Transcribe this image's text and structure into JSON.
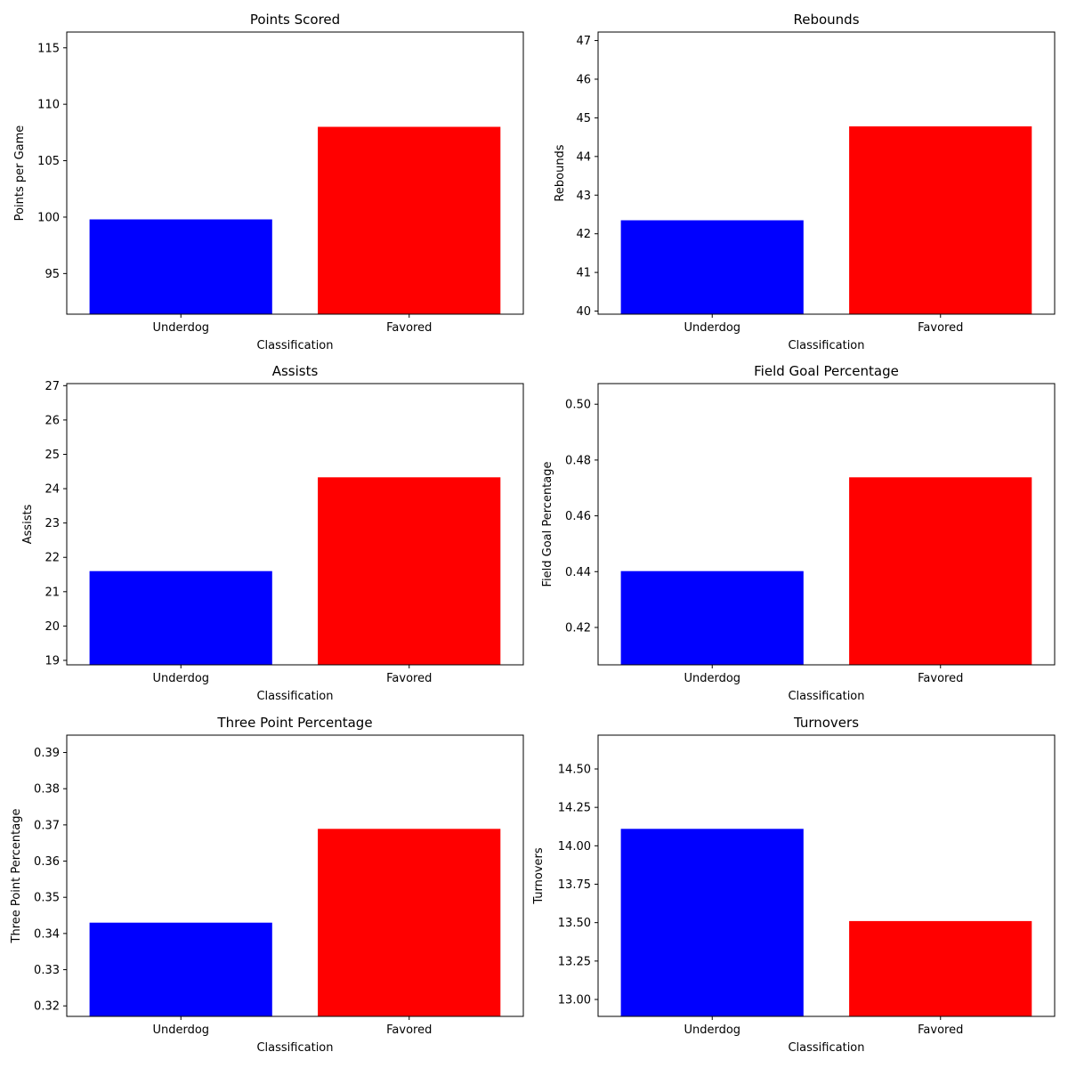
{
  "chart_data": [
    {
      "type": "bar",
      "title": "Points Scored",
      "xlabel": "Classification",
      "ylabel": "Points per Game",
      "categories": [
        "Underdog",
        "Favored"
      ],
      "values": [
        99.8,
        108.0
      ],
      "colors": [
        "#0000ff",
        "#ff0000"
      ],
      "ylim": [
        91.4,
        116.4
      ],
      "yticks": [
        95,
        100,
        105,
        110,
        115
      ],
      "ytick_labels": [
        "95",
        "100",
        "105",
        "110",
        "115"
      ],
      "grid": false,
      "legend": "none"
    },
    {
      "type": "bar",
      "title": "Rebounds",
      "xlabel": "Classification",
      "ylabel": "Rebounds",
      "categories": [
        "Underdog",
        "Favored"
      ],
      "values": [
        42.35,
        44.78
      ],
      "colors": [
        "#0000ff",
        "#ff0000"
      ],
      "ylim": [
        39.92,
        47.22
      ],
      "yticks": [
        40,
        41,
        42,
        43,
        44,
        45,
        46,
        47
      ],
      "ytick_labels": [
        "40",
        "41",
        "42",
        "43",
        "44",
        "45",
        "46",
        "47"
      ],
      "grid": false,
      "legend": "none"
    },
    {
      "type": "bar",
      "title": "Assists",
      "xlabel": "Classification",
      "ylabel": "Assists",
      "categories": [
        "Underdog",
        "Favored"
      ],
      "values": [
        21.6,
        24.33
      ],
      "colors": [
        "#0000ff",
        "#ff0000"
      ],
      "ylim": [
        18.87,
        27.06
      ],
      "yticks": [
        19,
        20,
        21,
        22,
        23,
        24,
        25,
        26,
        27
      ],
      "ytick_labels": [
        "19",
        "20",
        "21",
        "22",
        "23",
        "24",
        "25",
        "26",
        "27"
      ],
      "grid": false,
      "legend": "none"
    },
    {
      "type": "bar",
      "title": "Field Goal Percentage",
      "xlabel": "Classification",
      "ylabel": "Field Goal Percentage",
      "categories": [
        "Underdog",
        "Favored"
      ],
      "values": [
        0.4402,
        0.4738
      ],
      "colors": [
        "#0000ff",
        "#ff0000"
      ],
      "ylim": [
        0.4066,
        0.5074
      ],
      "yticks": [
        0.42,
        0.44,
        0.46,
        0.48,
        0.5
      ],
      "ytick_labels": [
        "0.42",
        "0.44",
        "0.46",
        "0.48",
        "0.50"
      ],
      "grid": false,
      "legend": "none"
    },
    {
      "type": "bar",
      "title": "Three Point Percentage",
      "xlabel": "Classification",
      "ylabel": "Three Point Percentage",
      "categories": [
        "Underdog",
        "Favored"
      ],
      "values": [
        0.343,
        0.3689
      ],
      "colors": [
        "#0000ff",
        "#ff0000"
      ],
      "ylim": [
        0.3171,
        0.3948
      ],
      "yticks": [
        0.32,
        0.33,
        0.34,
        0.35,
        0.36,
        0.37,
        0.38,
        0.39
      ],
      "ytick_labels": [
        "0.32",
        "0.33",
        "0.34",
        "0.35",
        "0.36",
        "0.37",
        "0.38",
        "0.39"
      ],
      "grid": false,
      "legend": "none"
    },
    {
      "type": "bar",
      "title": "Turnovers",
      "xlabel": "Classification",
      "ylabel": "Turnovers",
      "categories": [
        "Underdog",
        "Favored"
      ],
      "values": [
        14.11,
        13.51
      ],
      "colors": [
        "#0000ff",
        "#ff0000"
      ],
      "ylim": [
        12.89,
        14.72
      ],
      "yticks": [
        13.0,
        13.25,
        13.5,
        13.75,
        14.0,
        14.25,
        14.5
      ],
      "ytick_labels": [
        "13.00",
        "13.25",
        "13.50",
        "13.75",
        "14.00",
        "14.25",
        "14.50"
      ],
      "grid": false,
      "legend": "none"
    }
  ]
}
